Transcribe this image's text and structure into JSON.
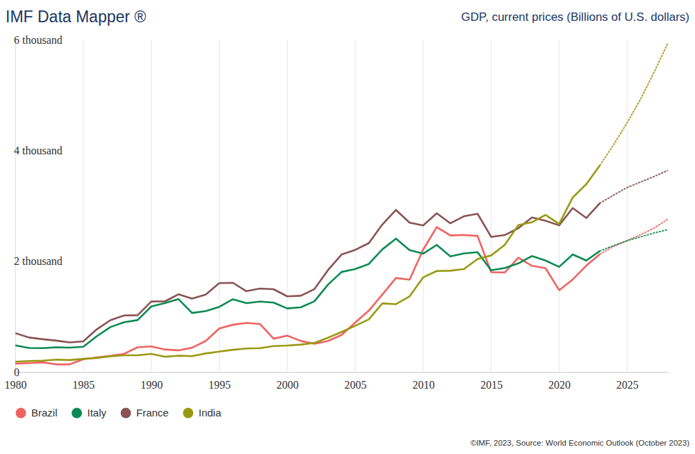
{
  "chart_data": {
    "type": "line",
    "title": "IMF Data Mapper ®",
    "subtitle": "GDP, current prices (Billions of U.S. dollars)",
    "caption": "©IMF, 2023, Source: World Economic Outlook (October 2023)",
    "x": [
      1980,
      1981,
      1982,
      1983,
      1984,
      1985,
      1986,
      1987,
      1988,
      1989,
      1990,
      1991,
      1992,
      1993,
      1994,
      1995,
      1996,
      1997,
      1998,
      1999,
      2000,
      2001,
      2002,
      2003,
      2004,
      2005,
      2006,
      2007,
      2008,
      2009,
      2010,
      2011,
      2012,
      2013,
      2014,
      2015,
      2016,
      2017,
      2018,
      2019,
      2020,
      2021,
      2022,
      2023,
      2024,
      2025,
      2026,
      2027,
      2028
    ],
    "projection_start": 2023,
    "xlim": [
      1980,
      2028
    ],
    "xticks": [
      1980,
      1985,
      1990,
      1995,
      2000,
      2005,
      2010,
      2015,
      2020,
      2025
    ],
    "ylim": [
      0,
      6000
    ],
    "yticks": [
      0,
      {
        "value": 2000,
        "label": "2 thousand"
      },
      {
        "value": 4000,
        "label": "4 thousand"
      },
      {
        "value": 6000,
        "label": "6 thousand"
      }
    ],
    "grid": "x",
    "legend": "bottom-left",
    "series": [
      {
        "name": "Brazil",
        "color": "#ef6360",
        "line_style": "solid",
        "values": [
          149,
          160,
          174,
          137,
          137,
          228,
          264,
          290,
          327,
          446,
          462,
          406,
          390,
          438,
          559,
          785,
          852,
          884,
          866,
          601,
          655,
          560,
          509,
          558,
          669,
          892,
          1107,
          1397,
          1696,
          1667,
          2209,
          2616,
          2465,
          2473,
          2456,
          1802,
          1796,
          2064,
          1917,
          1873,
          1476,
          1670,
          1920,
          2127,
          2265,
          2370,
          2480,
          2600,
          2760
        ]
      },
      {
        "name": "Italy",
        "color": "#0a8a52",
        "line_style": "solid",
        "values": [
          481,
          434,
          430,
          445,
          440,
          455,
          646,
          811,
          898,
          937,
          1183,
          1244,
          1317,
          1065,
          1099,
          1174,
          1312,
          1242,
          1270,
          1252,
          1147,
          1168,
          1275,
          1577,
          1806,
          1858,
          1949,
          2214,
          2408,
          2199,
          2136,
          2294,
          2087,
          2141,
          2162,
          1836,
          1877,
          1961,
          2092,
          2011,
          1897,
          2121,
          2012,
          2186,
          2280,
          2370,
          2440,
          2510,
          2570
        ]
      },
      {
        "name": "France",
        "color": "#8a5252",
        "line_style": "solid",
        "values": [
          701,
          623,
          592,
          566,
          533,
          553,
          771,
          935,
          1020,
          1025,
          1272,
          1274,
          1402,
          1324,
          1396,
          1603,
          1610,
          1458,
          1506,
          1494,
          1365,
          1376,
          1496,
          1840,
          2121,
          2204,
          2325,
          2664,
          2925,
          2695,
          2646,
          2865,
          2684,
          2811,
          2856,
          2439,
          2472,
          2595,
          2790,
          2729,
          2647,
          2959,
          2780,
          3050,
          3190,
          3330,
          3430,
          3530,
          3640
        ]
      },
      {
        "name": "India",
        "color": "#999912",
        "line_style": "solid",
        "values": [
          186,
          197,
          204,
          222,
          215,
          237,
          253,
          283,
          301,
          301,
          327,
          275,
          293,
          285,
          334,
          367,
          400,
          423,
          429,
          467,
          477,
          494,
          524,
          618,
          722,
          834,
          949,
          1238,
          1224,
          1365,
          1708,
          1823,
          1828,
          1857,
          2039,
          2104,
          2295,
          2651,
          2703,
          2836,
          2672,
          3150,
          3390,
          3732,
          4100,
          4500,
          4930,
          5420,
          5940
        ]
      }
    ]
  }
}
